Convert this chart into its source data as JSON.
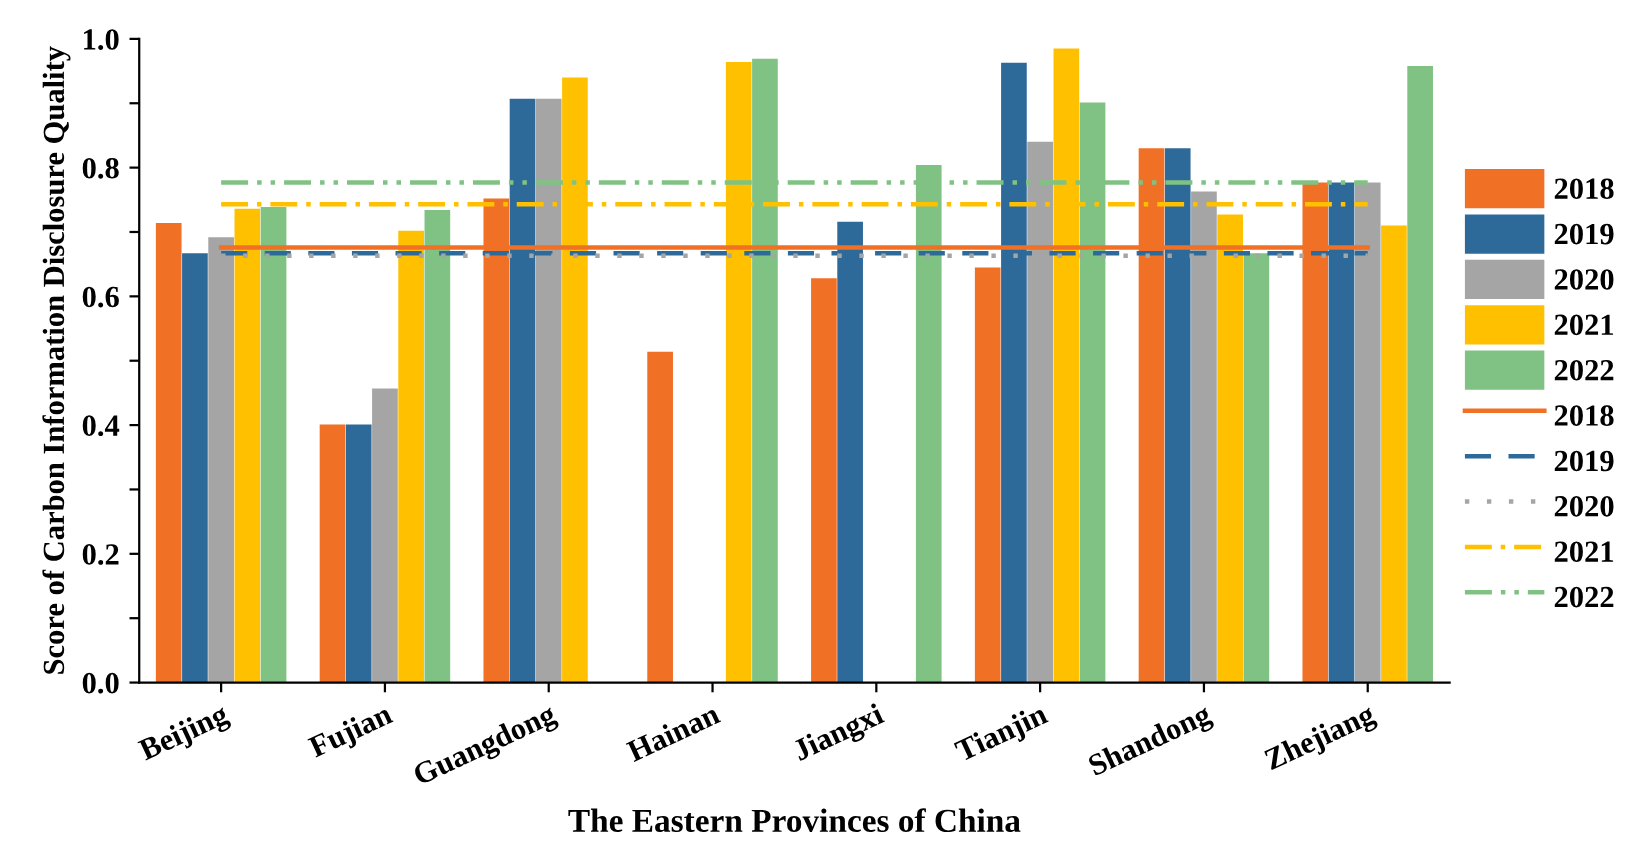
{
  "chart_data": {
    "type": "bar",
    "xlabel": "The Eastern Provinces of China",
    "ylabel": "Score of Carbon Information Disclosure Quality",
    "categories": [
      "Beijing",
      "Fujian",
      "Guangdong",
      "Hainan",
      "Jiangxi",
      "Tianjin",
      "Shandong",
      "Zhejiang"
    ],
    "series": [
      {
        "name": "2018",
        "color": "#f07026",
        "values": [
          0.714,
          0.401,
          0.752,
          0.514,
          0.628,
          0.645,
          0.83,
          0.777
        ]
      },
      {
        "name": "2019",
        "color": "#2e6a99",
        "values": [
          0.667,
          0.401,
          0.907,
          null,
          0.716,
          0.963,
          0.83,
          0.777
        ]
      },
      {
        "name": "2020",
        "color": "#a5a5a5",
        "values": [
          0.692,
          0.457,
          0.907,
          null,
          null,
          0.84,
          0.763,
          0.777
        ]
      },
      {
        "name": "2021",
        "color": "#ffc000",
        "values": [
          0.736,
          0.702,
          0.94,
          0.964,
          null,
          0.985,
          0.727,
          0.71
        ]
      },
      {
        "name": "2022",
        "color": "#80c284",
        "values": [
          0.739,
          0.734,
          null,
          0.969,
          0.804,
          0.901,
          0.667,
          0.958
        ]
      },
      {
        "type": "line",
        "name": "2018",
        "color": "#f07026",
        "line_style": "solid",
        "values": [
          0.676,
          0.676,
          0.676,
          0.676,
          0.676,
          0.676,
          0.676,
          0.676
        ]
      },
      {
        "type": "line",
        "name": "2019",
        "color": "#2e6a99",
        "line_style": "dashed",
        "values": [
          0.667,
          0.667,
          0.667,
          0.667,
          0.667,
          0.667,
          0.667,
          0.667
        ]
      },
      {
        "type": "line",
        "name": "2020",
        "color": "#a5a5a5",
        "line_style": "dotted",
        "values": [
          0.663,
          0.663,
          0.663,
          0.663,
          0.663,
          0.663,
          0.663,
          0.663
        ]
      },
      {
        "type": "line",
        "name": "2021",
        "color": "#ffc000",
        "line_style": "dashdot",
        "values": [
          0.743,
          0.743,
          0.743,
          0.743,
          0.743,
          0.743,
          0.743,
          0.743
        ]
      },
      {
        "type": "line",
        "name": "2022",
        "color": "#80c284",
        "line_style": "dashdotdot",
        "values": [
          0.777,
          0.777,
          0.777,
          0.777,
          0.777,
          0.777,
          0.777,
          0.777
        ]
      }
    ],
    "ylim": [
      0,
      1.0
    ],
    "yticks": [
      {
        "value": 0,
        "label": "0.0"
      },
      {
        "value": 0.1,
        "label": null
      },
      {
        "value": 0.2,
        "label": "0.2"
      },
      {
        "value": 0.3,
        "label": null
      },
      {
        "value": 0.4,
        "label": "0.4"
      },
      {
        "value": 0.5,
        "label": null
      },
      {
        "value": 0.6,
        "label": "0.6"
      },
      {
        "value": 0.7,
        "label": null
      },
      {
        "value": 0.8,
        "label": "0.8"
      },
      {
        "value": 0.9,
        "label": null
      },
      {
        "value": 1.0,
        "label": "1.0"
      }
    ],
    "grid": false,
    "legend": "right"
  }
}
